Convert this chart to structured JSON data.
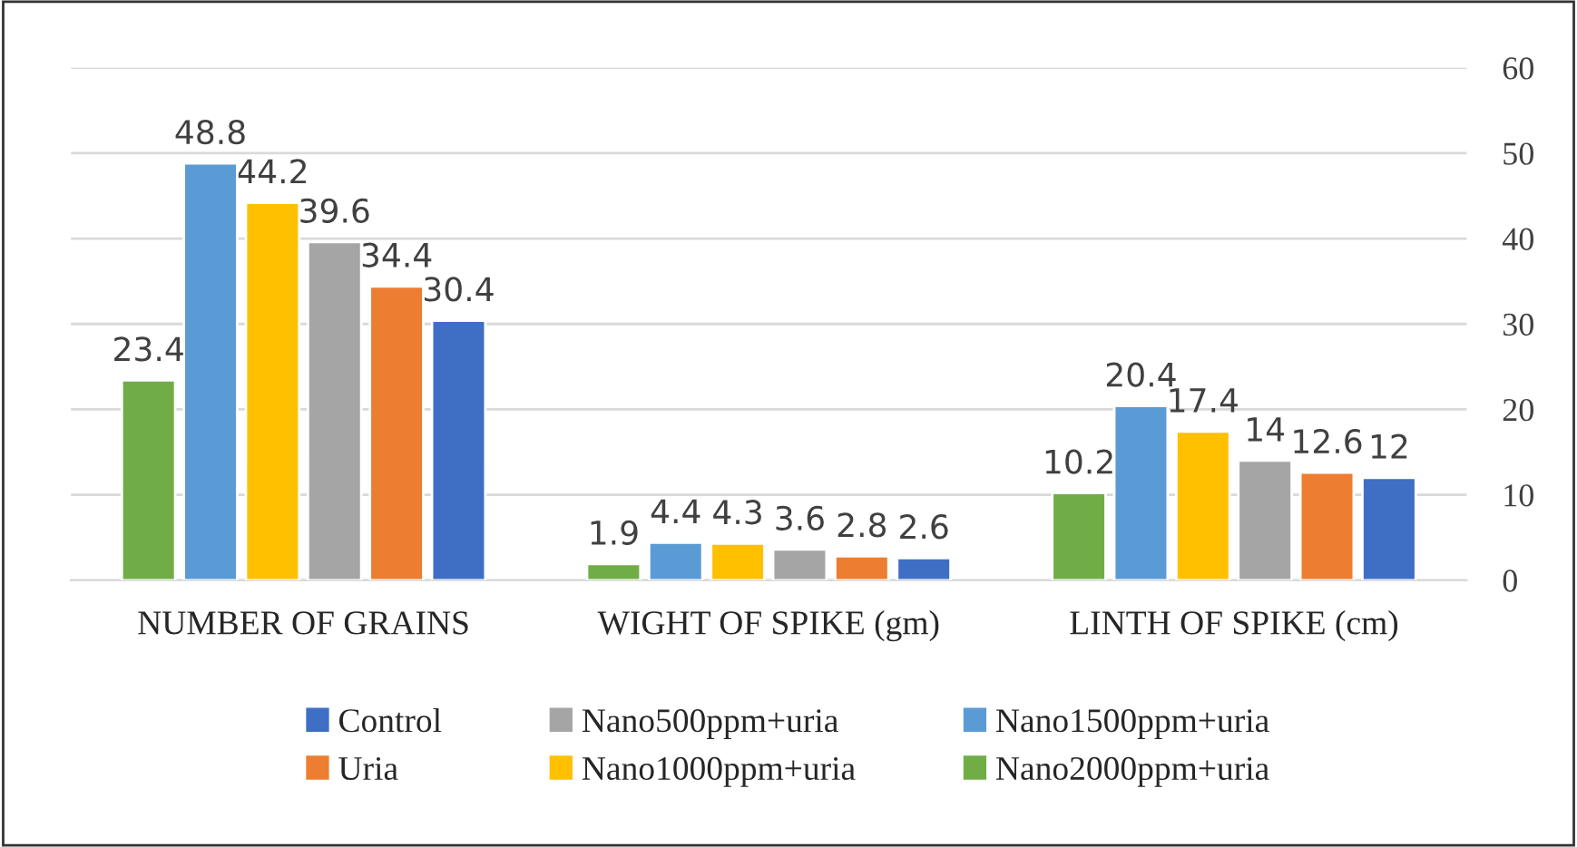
{
  "chart_data": {
    "type": "bar",
    "categories": [
      "NUMBER OF GRAINS",
      "WIGHT OF SPIKE (gm)",
      "LINTH OF SPIKE (cm)"
    ],
    "series": [
      {
        "name": "Control",
        "color": "#3f6fc4",
        "values": [
          30.4,
          2.6,
          12
        ]
      },
      {
        "name": "Uria",
        "color": "#ed7d31",
        "values": [
          34.4,
          2.8,
          12.6
        ]
      },
      {
        "name": "Nano500ppm+uria",
        "color": "#a5a5a5",
        "values": [
          39.6,
          3.6,
          14
        ]
      },
      {
        "name": "Nano1000ppm+uria",
        "color": "#ffc000",
        "values": [
          44.2,
          4.3,
          17.4
        ]
      },
      {
        "name": "Nano1500ppm+uria",
        "color": "#5b9bd5",
        "values": [
          48.8,
          4.4,
          20.4
        ]
      },
      {
        "name": "Nano2000ppm+uria",
        "color": "#70ad47",
        "values": [
          23.4,
          1.9,
          10.2
        ]
      }
    ],
    "ylim": [
      0,
      60
    ],
    "yticks": [
      0,
      10,
      20,
      30,
      40,
      50,
      60
    ],
    "grid": "y",
    "legend": "bottom",
    "data_labels": true
  }
}
